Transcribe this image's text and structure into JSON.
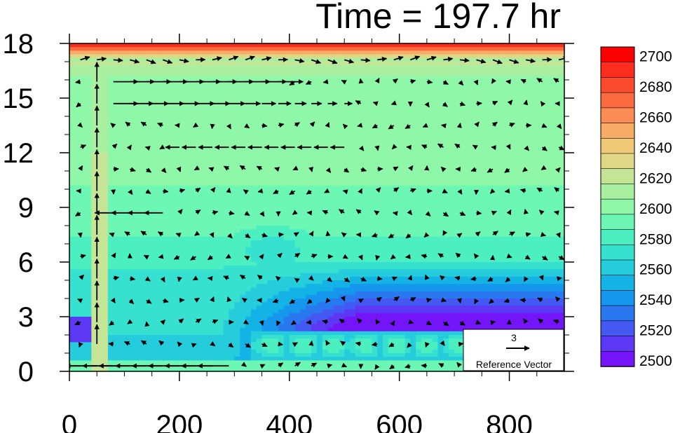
{
  "chart_data": {
    "type": "contour",
    "title": "Time = 197.7 hr",
    "x_ticks": [
      0,
      200,
      400,
      600,
      800
    ],
    "y_ticks": [
      0,
      3,
      6,
      9,
      12,
      15,
      18
    ],
    "xlim": [
      0,
      900
    ],
    "ylim": [
      0,
      18
    ],
    "colorbar": {
      "labels": [
        2700,
        2680,
        2660,
        2640,
        2620,
        2600,
        2580,
        2560,
        2540,
        2520,
        2500
      ],
      "levels_top_to_bottom": [
        {
          "value": 2700,
          "color": "#ff0000"
        },
        {
          "value": 2690,
          "color": "#fd2d1d"
        },
        {
          "value": 2680,
          "color": "#fc4c2f"
        },
        {
          "value": 2670,
          "color": "#fc6a40"
        },
        {
          "value": 2660,
          "color": "#fb8c55"
        },
        {
          "value": 2650,
          "color": "#f7ac68"
        },
        {
          "value": 2640,
          "color": "#f0c877"
        },
        {
          "value": 2630,
          "color": "#dfd786"
        },
        {
          "value": 2620,
          "color": "#c4e596"
        },
        {
          "value": 2610,
          "color": "#a9efa0"
        },
        {
          "value": 2600,
          "color": "#8ff7a8"
        },
        {
          "value": 2590,
          "color": "#6df7b4"
        },
        {
          "value": 2580,
          "color": "#4cf0c0"
        },
        {
          "value": 2570,
          "color": "#36e2cf"
        },
        {
          "value": 2560,
          "color": "#24ccdc"
        },
        {
          "value": 2550,
          "color": "#14b3e6"
        },
        {
          "value": 2540,
          "color": "#1497ec"
        },
        {
          "value": 2530,
          "color": "#2a78f0"
        },
        {
          "value": 2520,
          "color": "#4458f3"
        },
        {
          "value": 2510,
          "color": "#5c38f5"
        },
        {
          "value": 2500,
          "color": "#7414f8"
        }
      ]
    },
    "reference_vector": {
      "magnitude": "3",
      "label": "Reference Vector"
    },
    "vector_field": "wind arrows overlaid on filled contours"
  }
}
